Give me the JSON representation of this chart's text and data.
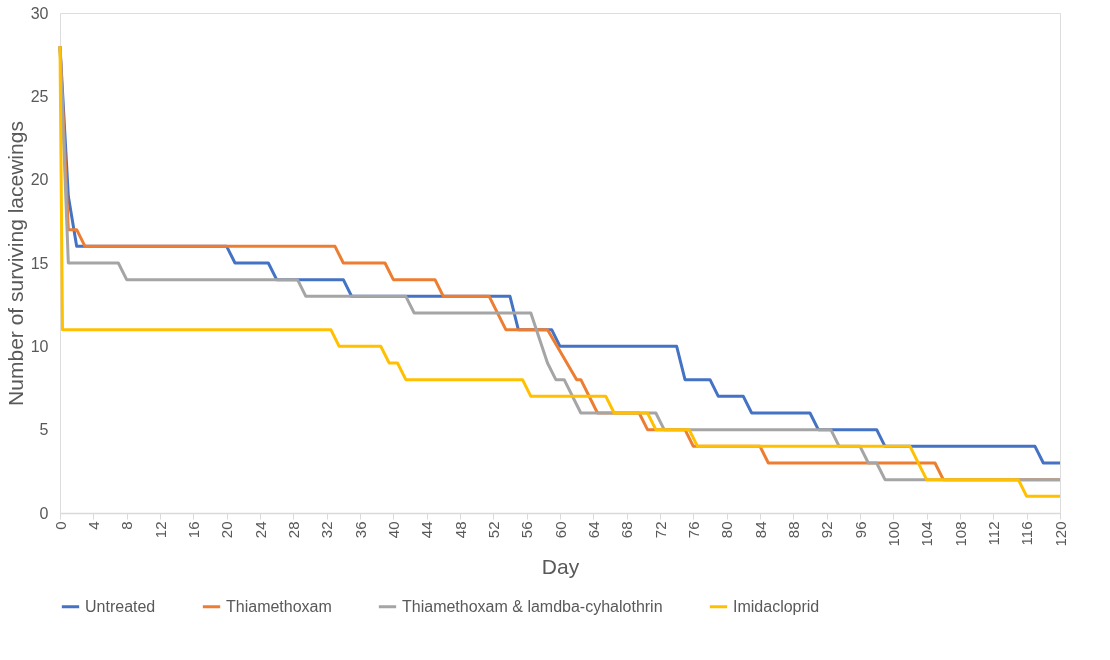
{
  "chart_data": {
    "type": "line",
    "xlabel": "Day",
    "ylabel": "Number of surviving lacewings",
    "xlim": [
      0,
      120
    ],
    "xticks": [
      0,
      4,
      8,
      12,
      16,
      20,
      24,
      28,
      32,
      36,
      40,
      44,
      48,
      52,
      56,
      60,
      64,
      68,
      72,
      76,
      80,
      84,
      88,
      92,
      96,
      100,
      104,
      108,
      112,
      116,
      120
    ],
    "ylim": [
      0,
      30
    ],
    "yticks": [
      0,
      5,
      10,
      15,
      20,
      25,
      30
    ],
    "grid": false,
    "legend": "bottom",
    "marker": "none",
    "line_style": "solid",
    "series": [
      {
        "name": "Untreated",
        "color": "#4472c4",
        "x": [
          0,
          1,
          2,
          20,
          21,
          25,
          26,
          34,
          35,
          54,
          55,
          59,
          60,
          74,
          75,
          78,
          79,
          82,
          83,
          90,
          91,
          98,
          99,
          117,
          118,
          120
        ],
        "values": [
          28,
          19,
          16,
          16,
          15,
          15,
          14,
          14,
          13,
          13,
          11,
          11,
          10,
          10,
          8,
          8,
          7,
          7,
          6,
          6,
          5,
          5,
          4,
          4,
          3,
          3
        ]
      },
      {
        "name": "Thiamethoxam",
        "color": "#ed7d31",
        "x": [
          0,
          1,
          2,
          3,
          33,
          34,
          39,
          40,
          45,
          46,
          51.5,
          53.5,
          58.5,
          62,
          62.5,
          64.5,
          69.5,
          70.5,
          75,
          76,
          84,
          85,
          105,
          106,
          120
        ],
        "values": [
          28,
          17,
          17,
          16,
          16,
          15,
          15,
          14,
          14,
          13,
          13,
          11,
          11,
          8,
          8,
          6,
          6,
          5,
          5,
          4,
          4,
          3,
          3,
          2,
          2
        ]
      },
      {
        "name": "Thiamethoxam & lamdba-cyhalothrin",
        "color": "#a5a5a5",
        "x": [
          0,
          1,
          7,
          8,
          28.5,
          29.5,
          41.5,
          42.5,
          56.5,
          58.5,
          59.5,
          60.5,
          62.5,
          71.5,
          72.5,
          92.5,
          93.5,
          96,
          97,
          98,
          99,
          120
        ],
        "values": [
          28,
          15,
          15,
          14,
          14,
          13,
          13,
          12,
          12,
          9,
          8,
          8,
          6,
          6,
          5,
          5,
          4,
          4,
          3,
          3,
          2,
          2
        ]
      },
      {
        "name": "Imidacloprid",
        "color": "#ffc000",
        "x": [
          0,
          0.3,
          32.5,
          33.5,
          38.5,
          39.5,
          40.5,
          41.5,
          55.5,
          56.5,
          65.5,
          66.5,
          70.5,
          71.5,
          75.5,
          76.5,
          102,
          104,
          115,
          116,
          120
        ],
        "values": [
          28,
          11,
          11,
          10,
          10,
          9,
          9,
          8,
          8,
          7,
          7,
          6,
          6,
          5,
          5,
          4,
          4,
          2,
          2,
          1,
          1
        ]
      }
    ]
  }
}
